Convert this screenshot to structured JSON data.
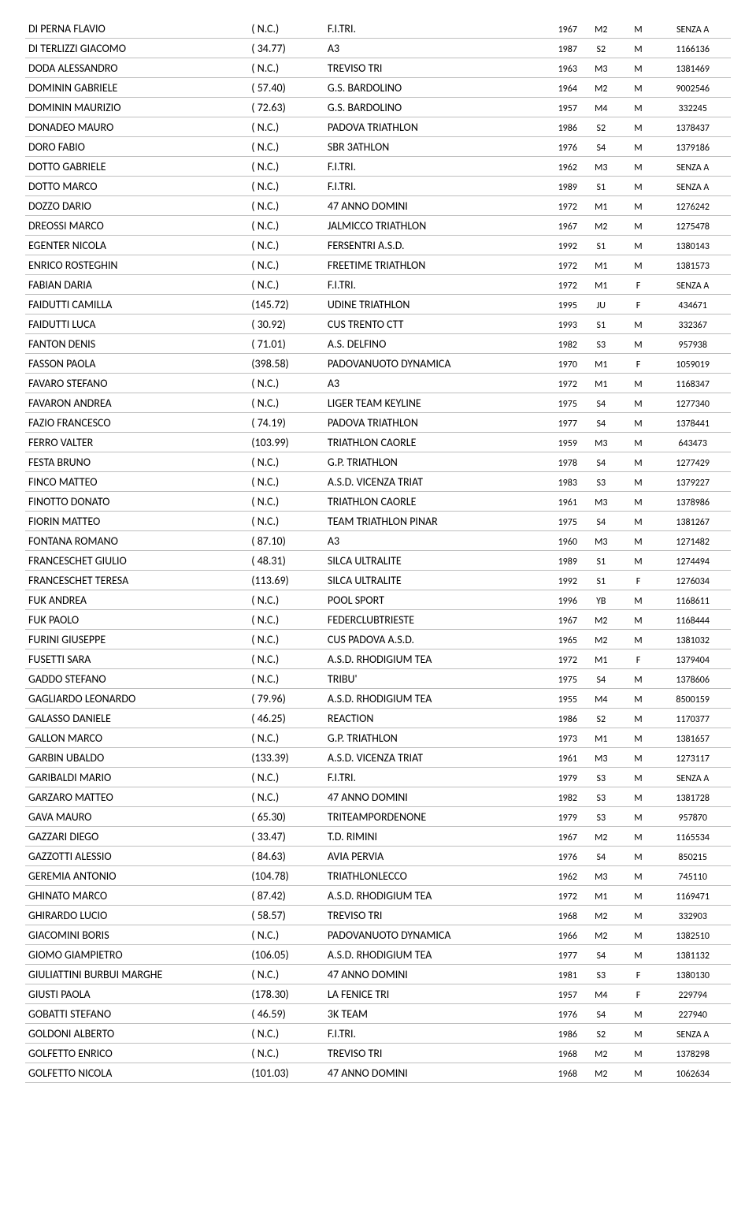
{
  "rows": [
    {
      "name": "DI PERNA FLAVIO",
      "time": "(  N.C.)",
      "team": "F.I.TRI.",
      "year": "1967",
      "cat": "M2",
      "sex": "M",
      "code": "SENZA  A"
    },
    {
      "name": "DI TERLIZZI GIACOMO",
      "time": "( 34.77)",
      "team": "A3",
      "year": "1987",
      "cat": "S2",
      "sex": "M",
      "code": "1166136"
    },
    {
      "name": "DODA ALESSANDRO",
      "time": "(  N.C.)",
      "team": "TREVISO TRI",
      "year": "1963",
      "cat": "M3",
      "sex": "M",
      "code": "1381469"
    },
    {
      "name": "DOMININ GABRIELE",
      "time": "( 57.40)",
      "team": "G.S. BARDOLINO",
      "year": "1964",
      "cat": "M2",
      "sex": "M",
      "code": "9002546"
    },
    {
      "name": "DOMININ MAURIZIO",
      "time": "( 72.63)",
      "team": "G.S. BARDOLINO",
      "year": "1957",
      "cat": "M4",
      "sex": "M",
      "code": "332245"
    },
    {
      "name": "DONADEO MAURO",
      "time": "(  N.C.)",
      "team": "PADOVA TRIATHLON",
      "year": "1986",
      "cat": "S2",
      "sex": "M",
      "code": "1378437"
    },
    {
      "name": "DORO FABIO",
      "time": "(  N.C.)",
      "team": "SBR 3ATHLON",
      "year": "1976",
      "cat": "S4",
      "sex": "M",
      "code": "1379186"
    },
    {
      "name": "DOTTO GABRIELE",
      "time": "(  N.C.)",
      "team": "F.I.TRI.",
      "year": "1962",
      "cat": "M3",
      "sex": "M",
      "code": "SENZA  A"
    },
    {
      "name": "DOTTO MARCO",
      "time": "(  N.C.)",
      "team": "F.I.TRI.",
      "year": "1989",
      "cat": "S1",
      "sex": "M",
      "code": "SENZA  A"
    },
    {
      "name": "DOZZO DARIO",
      "time": "(  N.C.)",
      "team": "47 ANNO DOMINI",
      "year": "1972",
      "cat": "M1",
      "sex": "M",
      "code": "1276242"
    },
    {
      "name": "DREOSSI MARCO",
      "time": "(  N.C.)",
      "team": "JALMICCO TRIATHLON",
      "year": "1967",
      "cat": "M2",
      "sex": "M",
      "code": "1275478"
    },
    {
      "name": "EGENTER NICOLA",
      "time": "(  N.C.)",
      "team": "FERSENTRI A.S.D.",
      "year": "1992",
      "cat": "S1",
      "sex": "M",
      "code": "1380143"
    },
    {
      "name": "ENRICO ROSTEGHIN",
      "time": "(  N.C.)",
      "team": "FREETIME TRIATHLON",
      "year": "1972",
      "cat": "M1",
      "sex": "M",
      "code": "1381573"
    },
    {
      "name": "FABIAN DARIA",
      "time": "(  N.C.)",
      "team": "F.I.TRI.",
      "year": "1972",
      "cat": "M1",
      "sex": "F",
      "code": "SENZA  A"
    },
    {
      "name": "FAIDUTTI CAMILLA",
      "time": "(145.72)",
      "team": "UDINE TRIATHLON",
      "year": "1995",
      "cat": "JU",
      "sex": "F",
      "code": "434671"
    },
    {
      "name": "FAIDUTTI LUCA",
      "time": "( 30.92)",
      "team": "CUS TRENTO CTT",
      "year": "1993",
      "cat": "S1",
      "sex": "M",
      "code": "332367"
    },
    {
      "name": "FANTON DENIS",
      "time": "( 71.01)",
      "team": "A.S. DELFINO",
      "year": "1982",
      "cat": "S3",
      "sex": "M",
      "code": "957938"
    },
    {
      "name": "FASSON PAOLA",
      "time": "(398.58)",
      "team": "PADOVANUOTO DYNAMICA",
      "year": "1970",
      "cat": "M1",
      "sex": "F",
      "code": "1059019"
    },
    {
      "name": "FAVARO STEFANO",
      "time": "(  N.C.)",
      "team": "A3",
      "year": "1972",
      "cat": "M1",
      "sex": "M",
      "code": "1168347"
    },
    {
      "name": "FAVARON ANDREA",
      "time": "(  N.C.)",
      "team": "LIGER TEAM KEYLINE",
      "year": "1975",
      "cat": "S4",
      "sex": "M",
      "code": "1277340"
    },
    {
      "name": "FAZIO FRANCESCO",
      "time": "( 74.19)",
      "team": "PADOVA TRIATHLON",
      "year": "1977",
      "cat": "S4",
      "sex": "M",
      "code": "1378441"
    },
    {
      "name": "FERRO VALTER",
      "time": "(103.99)",
      "team": "TRIATHLON CAORLE",
      "year": "1959",
      "cat": "M3",
      "sex": "M",
      "code": "643473"
    },
    {
      "name": "FESTA BRUNO",
      "time": "(  N.C.)",
      "team": "G.P. TRIATHLON",
      "year": "1978",
      "cat": "S4",
      "sex": "M",
      "code": "1277429"
    },
    {
      "name": "FINCO MATTEO",
      "time": "(  N.C.)",
      "team": "A.S.D. VICENZA TRIAT",
      "year": "1983",
      "cat": "S3",
      "sex": "M",
      "code": "1379227"
    },
    {
      "name": "FINOTTO DONATO",
      "time": "(  N.C.)",
      "team": "TRIATHLON CAORLE",
      "year": "1961",
      "cat": "M3",
      "sex": "M",
      "code": "1378986"
    },
    {
      "name": "FIORIN MATTEO",
      "time": "(  N.C.)",
      "team": "TEAM TRIATHLON PINAR",
      "year": "1975",
      "cat": "S4",
      "sex": "M",
      "code": "1381267"
    },
    {
      "name": "FONTANA ROMANO",
      "time": "( 87.10)",
      "team": "A3",
      "year": "1960",
      "cat": "M3",
      "sex": "M",
      "code": "1271482"
    },
    {
      "name": "FRANCESCHET GIULIO",
      "time": "( 48.31)",
      "team": "SILCA ULTRALITE",
      "year": "1989",
      "cat": "S1",
      "sex": "M",
      "code": "1274494"
    },
    {
      "name": "FRANCESCHET TERESA",
      "time": "(113.69)",
      "team": "SILCA ULTRALITE",
      "year": "1992",
      "cat": "S1",
      "sex": "F",
      "code": "1276034"
    },
    {
      "name": "FUK ANDREA",
      "time": "(  N.C.)",
      "team": "POOL SPORT",
      "year": "1996",
      "cat": "YB",
      "sex": "M",
      "code": "1168611"
    },
    {
      "name": "FUK PAOLO",
      "time": "(  N.C.)",
      "team": "FEDERCLUBTRIESTE",
      "year": "1967",
      "cat": "M2",
      "sex": "M",
      "code": "1168444"
    },
    {
      "name": "FURINI GIUSEPPE",
      "time": "(  N.C.)",
      "team": "CUS PADOVA A.S.D.",
      "year": "1965",
      "cat": "M2",
      "sex": "M",
      "code": "1381032"
    },
    {
      "name": "FUSETTI SARA",
      "time": "(  N.C.)",
      "team": "A.S.D. RHODIGIUM TEA",
      "year": "1972",
      "cat": "M1",
      "sex": "F",
      "code": "1379404"
    },
    {
      "name": "GADDO STEFANO",
      "time": "(  N.C.)",
      "team": "TRIBU'",
      "year": "1975",
      "cat": "S4",
      "sex": "M",
      "code": "1378606"
    },
    {
      "name": "GAGLIARDO LEONARDO",
      "time": "( 79.96)",
      "team": "A.S.D. RHODIGIUM TEA",
      "year": "1955",
      "cat": "M4",
      "sex": "M",
      "code": "8500159"
    },
    {
      "name": "GALASSO DANIELE",
      "time": "( 46.25)",
      "team": "REACTION",
      "year": "1986",
      "cat": "S2",
      "sex": "M",
      "code": "1170377"
    },
    {
      "name": "GALLON MARCO",
      "time": "(  N.C.)",
      "team": "G.P. TRIATHLON",
      "year": "1973",
      "cat": "M1",
      "sex": "M",
      "code": "1381657"
    },
    {
      "name": "GARBIN UBALDO",
      "time": "(133.39)",
      "team": "A.S.D. VICENZA TRIAT",
      "year": "1961",
      "cat": "M3",
      "sex": "M",
      "code": "1273117"
    },
    {
      "name": "GARIBALDI MARIO",
      "time": "(  N.C.)",
      "team": "F.I.TRI.",
      "year": "1979",
      "cat": "S3",
      "sex": "M",
      "code": "SENZA  A"
    },
    {
      "name": "GARZARO MATTEO",
      "time": "(  N.C.)",
      "team": "47 ANNO DOMINI",
      "year": "1982",
      "cat": "S3",
      "sex": "M",
      "code": "1381728"
    },
    {
      "name": "GAVA MAURO",
      "time": "( 65.30)",
      "team": "TRITEAMPORDENONE",
      "year": "1979",
      "cat": "S3",
      "sex": "M",
      "code": "957870"
    },
    {
      "name": "GAZZARI DIEGO",
      "time": "( 33.47)",
      "team": "T.D. RIMINI",
      "year": "1967",
      "cat": "M2",
      "sex": "M",
      "code": "1165534"
    },
    {
      "name": "GAZZOTTI ALESSIO",
      "time": "( 84.63)",
      "team": "AVIA PERVIA",
      "year": "1976",
      "cat": "S4",
      "sex": "M",
      "code": "850215"
    },
    {
      "name": "GEREMIA ANTONIO",
      "time": "(104.78)",
      "team": "TRIATHLONLECCO",
      "year": "1962",
      "cat": "M3",
      "sex": "M",
      "code": "745110"
    },
    {
      "name": "GHINATO MARCO",
      "time": "( 87.42)",
      "team": "A.S.D. RHODIGIUM TEA",
      "year": "1972",
      "cat": "M1",
      "sex": "M",
      "code": "1169471"
    },
    {
      "name": "GHIRARDO LUCIO",
      "time": "( 58.57)",
      "team": "TREVISO TRI",
      "year": "1968",
      "cat": "M2",
      "sex": "M",
      "code": "332903"
    },
    {
      "name": "GIACOMINI BORIS",
      "time": "(  N.C.)",
      "team": "PADOVANUOTO DYNAMICA",
      "year": "1966",
      "cat": "M2",
      "sex": "M",
      "code": "1382510"
    },
    {
      "name": "GIOMO GIAMPIETRO",
      "time": "(106.05)",
      "team": "A.S.D. RHODIGIUM TEA",
      "year": "1977",
      "cat": "S4",
      "sex": "M",
      "code": "1381132"
    },
    {
      "name": "GIULIATTINI BURBUI MARGHE",
      "time": "(  N.C.)",
      "team": "47 ANNO DOMINI",
      "year": "1981",
      "cat": "S3",
      "sex": "F",
      "code": "1380130"
    },
    {
      "name": "GIUSTI PAOLA",
      "time": "(178.30)",
      "team": "LA FENICE TRI",
      "year": "1957",
      "cat": "M4",
      "sex": "F",
      "code": "229794"
    },
    {
      "name": "GOBATTI STEFANO",
      "time": "( 46.59)",
      "team": "3K TEAM",
      "year": "1976",
      "cat": "S4",
      "sex": "M",
      "code": "227940"
    },
    {
      "name": "GOLDONI ALBERTO",
      "time": "(  N.C.)",
      "team": "F.I.TRI.",
      "year": "1986",
      "cat": "S2",
      "sex": "M",
      "code": "SENZA  A"
    },
    {
      "name": "GOLFETTO ENRICO",
      "time": "(  N.C.)",
      "team": "TREVISO TRI",
      "year": "1968",
      "cat": "M2",
      "sex": "M",
      "code": "1378298"
    },
    {
      "name": "GOLFETTO NICOLA",
      "time": "(101.03)",
      "team": "47 ANNO DOMINI",
      "year": "1968",
      "cat": "M2",
      "sex": "M",
      "code": "1062634"
    }
  ]
}
